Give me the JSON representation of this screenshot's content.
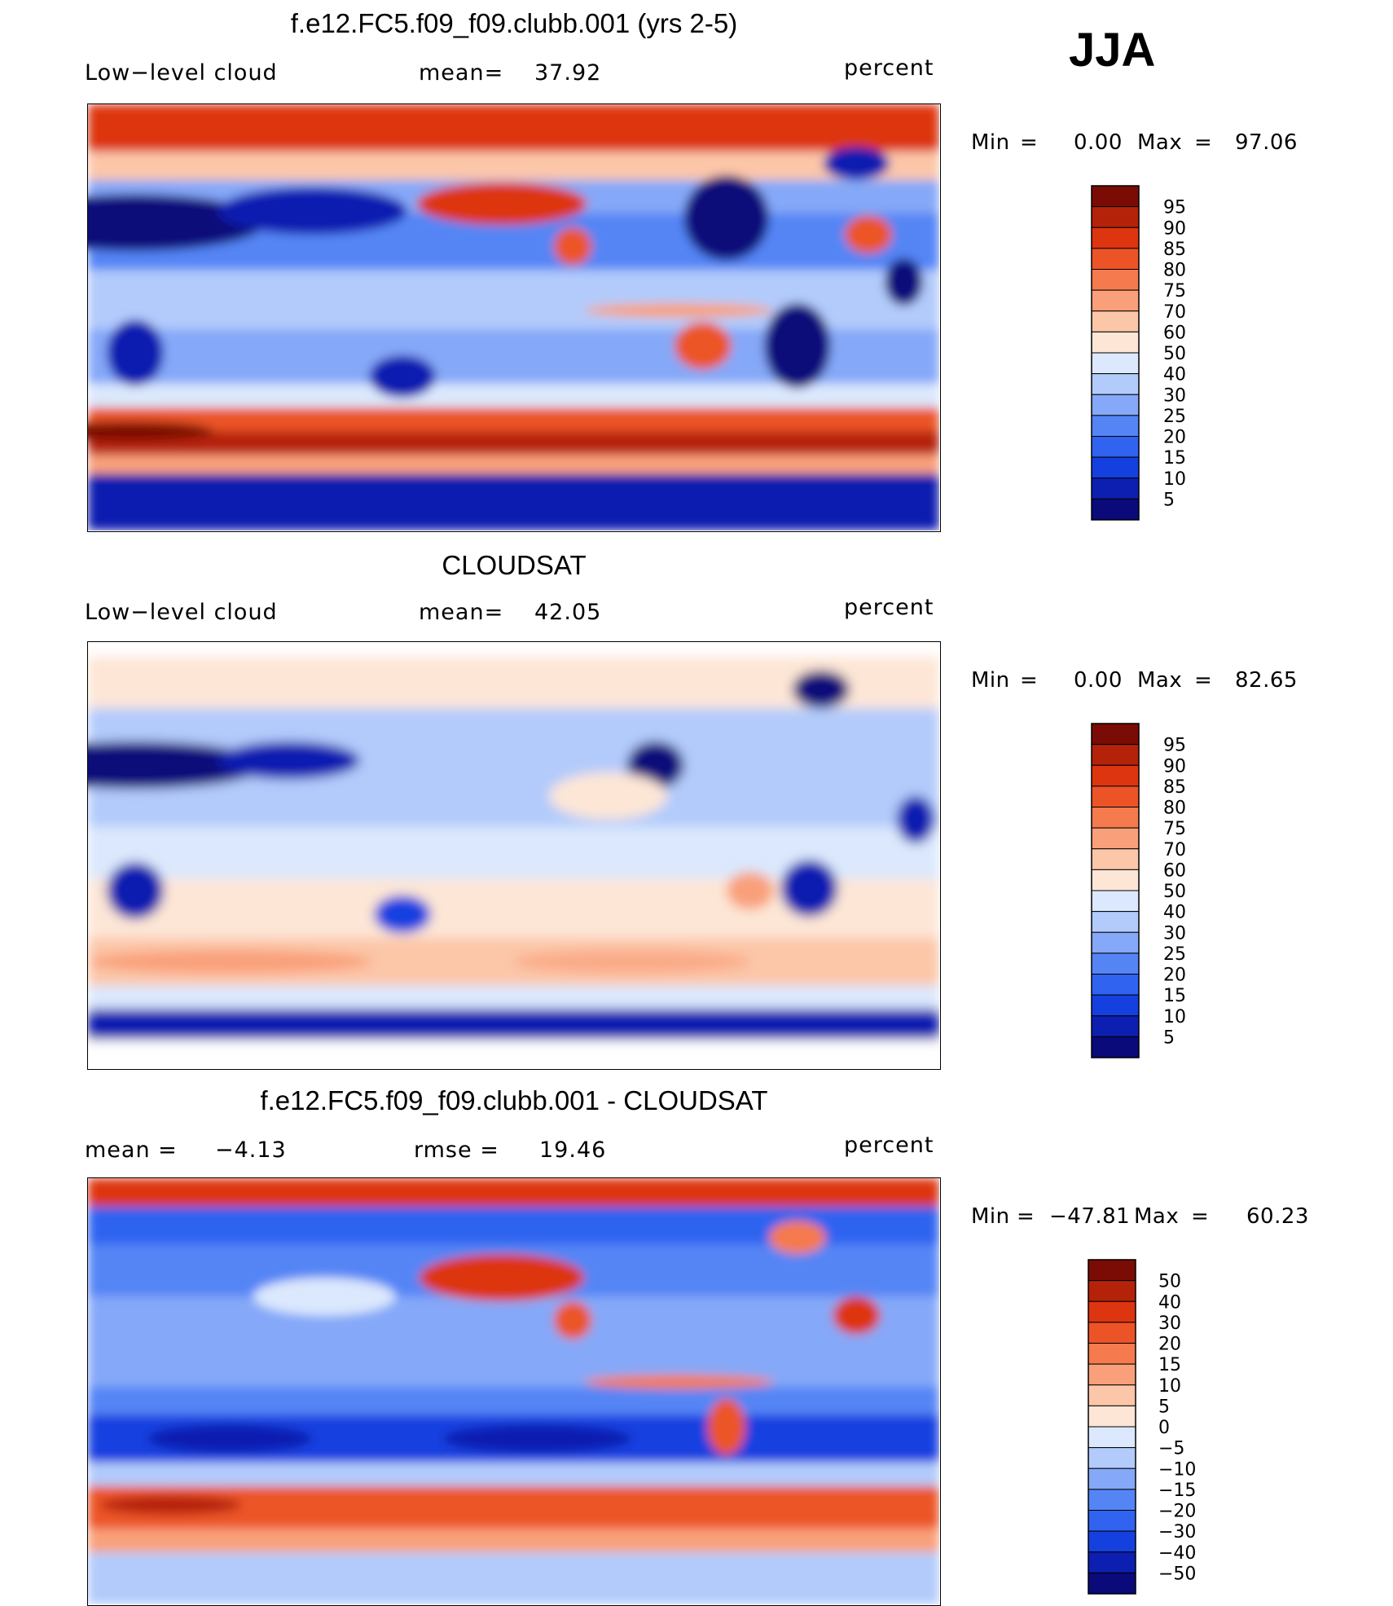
{
  "season": "JJA",
  "colors": {
    "abs_palette": [
      "#0a0a7a",
      "#0c1fb0",
      "#1540e0",
      "#2f63f0",
      "#5585f5",
      "#85a8f8",
      "#b2cbfb",
      "#dbe8fd",
      "#fde6d6",
      "#fcc6a8",
      "#f9a07a",
      "#f57a4e",
      "#ec5428",
      "#dd3510",
      "#b5220a",
      "#7a0c05"
    ],
    "diff_palette": [
      "#0a0a7a",
      "#0c1fb0",
      "#1540e0",
      "#2f63f0",
      "#5585f5",
      "#85a8f8",
      "#b2cbfb",
      "#dbe8fd",
      "#fde6d6",
      "#fcc6a8",
      "#f9a07a",
      "#f57a4e",
      "#ec5428",
      "#dd3510",
      "#b5220a",
      "#7a0c05"
    ]
  },
  "panels": [
    {
      "title": "f.e12.FC5.f09_f09.clubb.001 (yrs 2-5)",
      "left_label": "Low−level cloud",
      "mid_label": "mean=",
      "mid_value": "37.92",
      "units": "percent",
      "min_label": "Min",
      "eq": "=",
      "min_value": "0.00",
      "max_label": "Max",
      "max_value": "97.06"
    },
    {
      "title": "CLOUDSAT",
      "left_label": "Low−level cloud",
      "mid_label": "mean=",
      "mid_value": "42.05",
      "units": "percent",
      "min_label": "Min",
      "eq": "=",
      "min_value": "0.00",
      "max_label": "Max",
      "max_value": "82.65"
    },
    {
      "title": "f.e12.FC5.f09_f09.clubb.001 - CLOUDSAT",
      "left_label": "mean =",
      "left_value": "−4.13",
      "mid_label": "rmse =",
      "mid_value": "19.46",
      "units": "percent",
      "min_label": "Min",
      "eq": "=",
      "min_value": "−47.81",
      "max_label": "Max",
      "max_value": "60.23"
    }
  ],
  "chart_data": [
    {
      "type": "heatmap",
      "title": "f.e12.FC5.f09_f09.clubb.001 (yrs 2-5)",
      "variable": "Low-level cloud",
      "units": "percent",
      "mean": 37.92,
      "min": 0.0,
      "max": 97.06,
      "colorbar_levels": [
        5,
        10,
        15,
        20,
        25,
        30,
        40,
        50,
        60,
        70,
        75,
        80,
        85,
        90,
        95
      ],
      "colorbar_labels": [
        "95",
        "90",
        "85",
        "80",
        "75",
        "70",
        "60",
        "50",
        "40",
        "30",
        "25",
        "20",
        "15",
        "10",
        "5"
      ],
      "colormap": "blue-white-red"
    },
    {
      "type": "heatmap",
      "title": "CLOUDSAT",
      "variable": "Low-level cloud",
      "units": "percent",
      "mean": 42.05,
      "min": 0.0,
      "max": 82.65,
      "colorbar_levels": [
        5,
        10,
        15,
        20,
        25,
        30,
        40,
        50,
        60,
        70,
        75,
        80,
        85,
        90,
        95
      ],
      "colorbar_labels": [
        "95",
        "90",
        "85",
        "80",
        "75",
        "70",
        "60",
        "50",
        "40",
        "30",
        "25",
        "20",
        "15",
        "10",
        "5"
      ],
      "colormap": "blue-white-red"
    },
    {
      "type": "heatmap",
      "title": "f.e12.FC5.f09_f09.clubb.001 - CLOUDSAT",
      "units": "percent",
      "mean": -4.13,
      "rmse": 19.46,
      "min": -47.81,
      "max": 60.23,
      "colorbar_levels": [
        -50,
        -40,
        -30,
        -20,
        -15,
        -10,
        -5,
        0,
        5,
        10,
        15,
        20,
        30,
        40,
        50
      ],
      "colorbar_labels": [
        "50",
        "40",
        "30",
        "20",
        "15",
        "10",
        "5",
        "0",
        "−5",
        "−10",
        "−15",
        "−20",
        "−30",
        "−40",
        "−50"
      ],
      "colormap": "blue-white-red"
    }
  ]
}
